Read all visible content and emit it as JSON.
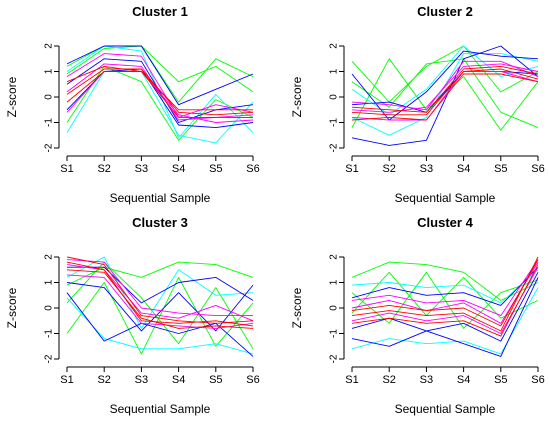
{
  "chart_data": [
    {
      "type": "line",
      "title": "Cluster 1",
      "xlabel": "Sequential Sample",
      "ylabel": "Z-score",
      "categories": [
        "S1",
        "S2",
        "S3",
        "S4",
        "S5",
        "S6"
      ],
      "ylim": [
        -2,
        2
      ],
      "yticks": [
        -2,
        -1,
        0,
        1,
        2
      ],
      "grid": false,
      "color_scale": [
        "#00ff00",
        "#00ffff",
        "#0000ff",
        "#ff00ff",
        "#ff0000"
      ],
      "series": [
        {
          "values": [
            1.2,
            2.0,
            2.0,
            -0.2,
            1.5,
            0.8
          ],
          "color": "#00ff00"
        },
        {
          "values": [
            0.9,
            1.9,
            2.0,
            0.6,
            1.2,
            0.2
          ],
          "color": "#00ff00"
        },
        {
          "values": [
            -1.0,
            1.2,
            0.6,
            -1.7,
            -0.1,
            -0.8
          ],
          "color": "#00ff00"
        },
        {
          "values": [
            -1.4,
            1.0,
            1.0,
            -1.5,
            -1.8,
            -0.2
          ],
          "color": "#00ffff"
        },
        {
          "values": [
            1.0,
            2.0,
            1.8,
            -1.6,
            0.1,
            -1.4
          ],
          "color": "#00ffff"
        },
        {
          "values": [
            1.3,
            2.0,
            2.0,
            -0.3,
            0.3,
            0.9
          ],
          "color": "#0000ff"
        },
        {
          "values": [
            0.5,
            1.5,
            1.4,
            -1.0,
            -0.5,
            -0.3
          ],
          "color": "#0000ff"
        },
        {
          "values": [
            -0.5,
            1.0,
            1.1,
            -1.1,
            -1.2,
            -1.0
          ],
          "color": "#0000ff"
        },
        {
          "values": [
            0.8,
            1.7,
            1.6,
            -0.8,
            -0.3,
            -0.6
          ],
          "color": "#ff00ff"
        },
        {
          "values": [
            0.2,
            1.3,
            1.2,
            -0.9,
            -0.8,
            -0.7
          ],
          "color": "#ff00ff"
        },
        {
          "values": [
            -0.6,
            1.0,
            1.0,
            -0.7,
            -1.0,
            -0.9
          ],
          "color": "#ff00ff"
        },
        {
          "values": [
            0.6,
            1.2,
            1.0,
            -0.5,
            -0.5,
            -0.5
          ],
          "color": "#ff0000"
        },
        {
          "values": [
            0.1,
            1.1,
            1.1,
            -0.6,
            -0.7,
            -0.6
          ],
          "color": "#ff0000"
        },
        {
          "values": [
            -0.2,
            1.0,
            1.0,
            -0.8,
            -0.8,
            -0.8
          ],
          "color": "#ff0000"
        }
      ]
    },
    {
      "type": "line",
      "title": "Cluster 2",
      "xlabel": "Sequential Sample",
      "ylabel": "Z-score",
      "categories": [
        "S1",
        "S2",
        "S3",
        "S4",
        "S5",
        "S6"
      ],
      "ylim": [
        -2,
        2
      ],
      "yticks": [
        -2,
        -1,
        0,
        1,
        2
      ],
      "grid": false,
      "color_scale": [
        "#00ff00",
        "#00ffff",
        "#0000ff",
        "#ff00ff",
        "#ff0000"
      ],
      "series": [
        {
          "values": [
            1.4,
            -0.2,
            1.2,
            2.0,
            0.2,
            1.0
          ],
          "color": "#00ff00"
        },
        {
          "values": [
            -1.2,
            1.5,
            -0.5,
            0.8,
            -1.3,
            0.6
          ],
          "color": "#00ff00"
        },
        {
          "values": [
            0.6,
            -0.4,
            1.3,
            1.5,
            -0.6,
            -1.2
          ],
          "color": "#00ff00"
        },
        {
          "values": [
            -0.8,
            -1.5,
            -0.8,
            1.7,
            1.7,
            1.4
          ],
          "color": "#00ffff"
        },
        {
          "values": [
            0.3,
            -0.7,
            0.3,
            2.0,
            0.8,
            1.2
          ],
          "color": "#00ffff"
        },
        {
          "values": [
            0.9,
            -0.9,
            0.2,
            1.8,
            1.6,
            1.5
          ],
          "color": "#0000ff"
        },
        {
          "values": [
            -1.6,
            -1.9,
            -1.7,
            1.5,
            2.0,
            0.8
          ],
          "color": "#0000ff"
        },
        {
          "values": [
            -0.3,
            -0.2,
            -0.6,
            1.0,
            1.0,
            0.9
          ],
          "color": "#0000ff"
        },
        {
          "values": [
            -0.5,
            -0.6,
            -0.4,
            1.2,
            1.3,
            1.0
          ],
          "color": "#ff00ff"
        },
        {
          "values": [
            -0.8,
            -0.9,
            -0.9,
            1.0,
            1.0,
            0.6
          ],
          "color": "#ff00ff"
        },
        {
          "values": [
            -0.2,
            -0.3,
            -0.5,
            1.4,
            1.4,
            0.8
          ],
          "color": "#ff00ff"
        },
        {
          "values": [
            -0.6,
            -0.7,
            -0.7,
            1.0,
            1.1,
            0.7
          ],
          "color": "#ff0000"
        },
        {
          "values": [
            -0.4,
            -0.5,
            -0.6,
            1.1,
            1.2,
            0.9
          ],
          "color": "#ff0000"
        },
        {
          "values": [
            -0.9,
            -0.8,
            -0.9,
            0.9,
            0.9,
            0.6
          ],
          "color": "#ff0000"
        }
      ]
    },
    {
      "type": "line",
      "title": "Cluster 3",
      "xlabel": "Sequential Sample",
      "ylabel": "Z-score",
      "categories": [
        "S1",
        "S2",
        "S3",
        "S4",
        "S5",
        "S6"
      ],
      "ylim": [
        -2,
        2
      ],
      "yticks": [
        -2,
        -1,
        0,
        1,
        2
      ],
      "grid": false,
      "color_scale": [
        "#00ff00",
        "#00ffff",
        "#0000ff",
        "#ff00ff",
        "#ff0000"
      ],
      "series": [
        {
          "values": [
            0.9,
            1.6,
            1.2,
            1.8,
            1.7,
            1.2
          ],
          "color": "#00ff00"
        },
        {
          "values": [
            -1.0,
            1.0,
            -1.8,
            1.2,
            -1.5,
            0.2
          ],
          "color": "#00ff00"
        },
        {
          "values": [
            0.2,
            1.8,
            0.4,
            -1.4,
            0.8,
            -1.6
          ],
          "color": "#00ff00"
        },
        {
          "values": [
            1.2,
            2.0,
            -0.8,
            1.5,
            0.5,
            0.6
          ],
          "color": "#00ffff"
        },
        {
          "values": [
            0.4,
            -1.2,
            -1.6,
            -1.6,
            -1.4,
            -1.8
          ],
          "color": "#00ffff"
        },
        {
          "values": [
            1.6,
            1.6,
            0.2,
            1.0,
            1.2,
            0.3
          ],
          "color": "#0000ff"
        },
        {
          "values": [
            0.6,
            -1.3,
            -0.6,
            -1.0,
            -0.6,
            -1.9
          ],
          "color": "#0000ff"
        },
        {
          "values": [
            1.0,
            0.8,
            -0.9,
            0.6,
            -0.9,
            0.9
          ],
          "color": "#0000ff"
        },
        {
          "values": [
            1.7,
            1.5,
            -0.2,
            -0.4,
            0.1,
            -0.5
          ],
          "color": "#ff00ff"
        },
        {
          "values": [
            1.3,
            1.2,
            -0.6,
            -0.7,
            -0.8,
            -0.6
          ],
          "color": "#ff00ff"
        },
        {
          "values": [
            1.9,
            1.8,
            0.0,
            -0.2,
            -0.3,
            -0.3
          ],
          "color": "#ff00ff"
        },
        {
          "values": [
            2.0,
            1.7,
            -0.3,
            -0.5,
            -0.6,
            -0.5
          ],
          "color": "#ff0000"
        },
        {
          "values": [
            1.8,
            1.5,
            -0.5,
            -0.6,
            -0.5,
            -0.7
          ],
          "color": "#ff0000"
        },
        {
          "values": [
            1.5,
            1.4,
            -0.4,
            -0.8,
            -0.7,
            -0.8
          ],
          "color": "#ff0000"
        }
      ]
    },
    {
      "type": "line",
      "title": "Cluster 4",
      "xlabel": "Sequential Sample",
      "ylabel": "Z-score",
      "categories": [
        "S1",
        "S2",
        "S3",
        "S4",
        "S5",
        "S6"
      ],
      "ylim": [
        -2,
        2
      ],
      "yticks": [
        -2,
        -1,
        0,
        1,
        2
      ],
      "grid": false,
      "color_scale": [
        "#00ff00",
        "#00ffff",
        "#0000ff",
        "#ff00ff",
        "#ff0000"
      ],
      "series": [
        {
          "values": [
            1.2,
            1.8,
            1.7,
            1.4,
            0.3,
            1.0
          ],
          "color": "#00ff00"
        },
        {
          "values": [
            -0.2,
            1.4,
            -0.3,
            1.2,
            -0.4,
            0.3
          ],
          "color": "#00ff00"
        },
        {
          "values": [
            0.6,
            -0.6,
            1.4,
            -0.8,
            0.6,
            1.1
          ],
          "color": "#00ff00"
        },
        {
          "values": [
            -1.6,
            -1.2,
            -1.4,
            -1.3,
            -1.8,
            0.8
          ],
          "color": "#00ffff"
        },
        {
          "values": [
            0.9,
            1.0,
            0.8,
            0.9,
            0.2,
            1.5
          ],
          "color": "#00ffff"
        },
        {
          "values": [
            -1.2,
            -1.5,
            -0.9,
            -1.4,
            -1.9,
            1.2
          ],
          "color": "#0000ff"
        },
        {
          "values": [
            0.4,
            0.8,
            0.5,
            0.6,
            0.1,
            1.6
          ],
          "color": "#0000ff"
        },
        {
          "values": [
            -0.8,
            -0.4,
            -0.9,
            -0.6,
            -1.3,
            1.4
          ],
          "color": "#0000ff"
        },
        {
          "values": [
            0.0,
            0.3,
            -0.1,
            0.2,
            -0.6,
            1.8
          ],
          "color": "#ff00ff"
        },
        {
          "values": [
            -0.5,
            -0.2,
            -0.5,
            -0.3,
            -1.0,
            1.6
          ],
          "color": "#ff00ff"
        },
        {
          "values": [
            0.3,
            0.5,
            0.2,
            0.3,
            -0.3,
            1.9
          ],
          "color": "#ff00ff"
        },
        {
          "values": [
            -0.3,
            -0.1,
            -0.3,
            -0.2,
            -0.9,
            2.0
          ],
          "color": "#ff0000"
        },
        {
          "values": [
            -0.6,
            -0.4,
            -0.6,
            -0.5,
            -1.1,
            1.7
          ],
          "color": "#ff0000"
        },
        {
          "values": [
            -0.1,
            0.1,
            -0.1,
            0.0,
            -0.7,
            1.9
          ],
          "color": "#ff0000"
        }
      ]
    }
  ]
}
